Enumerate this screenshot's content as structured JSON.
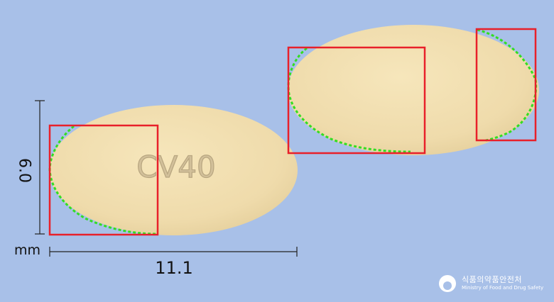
{
  "dimensions": {
    "unit": "mm",
    "height": "6.0",
    "width": "11.1"
  },
  "pill": {
    "imprint": "CV40",
    "color": "#f1dfae"
  },
  "logo": {
    "org_korean": "식품의약품안전처",
    "org_english": "Ministry of Food and Drug Safety"
  },
  "colors": {
    "background": "#a8c0e8",
    "box": "#e8202a",
    "contour": "#33dd22"
  }
}
